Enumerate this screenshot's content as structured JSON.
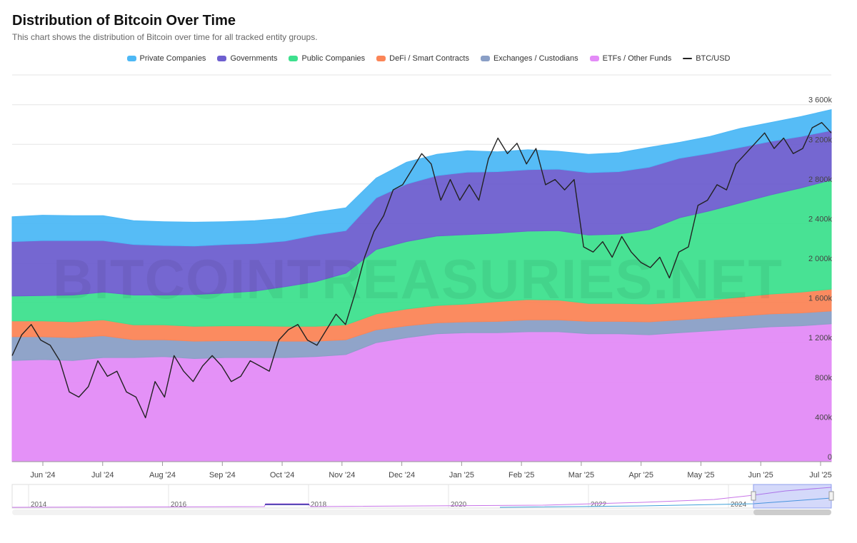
{
  "header": {
    "title": "Distribution of Bitcoin Over Time",
    "subtitle": "This chart shows the distribution of Bitcoin over time for all tracked entity groups."
  },
  "watermark": "BITCOINTREASURIES.NET",
  "legend": [
    {
      "label": "Private Companies",
      "color": "#4db8f5",
      "kind": "area"
    },
    {
      "label": "Governments",
      "color": "#6e5fcf",
      "kind": "area"
    },
    {
      "label": "Public Companies",
      "color": "#3ee08e",
      "kind": "area"
    },
    {
      "label": "DeFi / Smart Contracts",
      "color": "#fb8557",
      "kind": "area"
    },
    {
      "label": "Exchanges / Custodians",
      "color": "#8a9fc6",
      "kind": "area"
    },
    {
      "label": "ETFs / Other Funds",
      "color": "#e38bf7",
      "kind": "area"
    },
    {
      "label": "BTC/USD",
      "color": "#222222",
      "kind": "line"
    }
  ],
  "chart_data": {
    "type": "area",
    "stacked": true,
    "title": "Distribution of Bitcoin Over Time",
    "x_range": [
      "2024-05-15",
      "2025-07-01"
    ],
    "y_unit": "BTC",
    "ylim": [
      0,
      3600000
    ],
    "y_ticks": [
      0,
      400000,
      800000,
      1200000,
      1600000,
      2000000,
      2400000,
      2800000,
      3200000,
      3600000
    ],
    "y_tick_labels": [
      "0",
      "400k",
      "800k",
      "1 200k",
      "1 600k",
      "2 000k",
      "2 400k",
      "2 800k",
      "3 200k",
      "3 600k"
    ],
    "x_tick_labels": [
      "Jun '24",
      "Jul '24",
      "Aug '24",
      "Sep '24",
      "Oct '24",
      "Nov '24",
      "Dec '24",
      "Jan '25",
      "Feb '25",
      "Mar '25",
      "Apr '25",
      "May '25",
      "Jun '25",
      "Jul '25"
    ],
    "x": [
      0,
      0.5,
      1,
      1.5,
      2,
      2.5,
      3,
      3.5,
      4,
      4.5,
      5,
      5.5,
      6,
      6.5,
      7,
      7.5,
      8,
      8.5,
      9,
      9.5,
      10,
      10.5,
      11,
      11.5,
      12,
      12.5,
      13,
      13.5
    ],
    "series": [
      {
        "name": "ETFs / Other Funds",
        "color": "#e38bf7",
        "values": [
          1020000,
          1030000,
          1020000,
          1050000,
          1050000,
          1060000,
          1040000,
          1050000,
          1050000,
          1050000,
          1060000,
          1080000,
          1200000,
          1250000,
          1290000,
          1300000,
          1300000,
          1310000,
          1310000,
          1290000,
          1290000,
          1280000,
          1300000,
          1320000,
          1340000,
          1360000,
          1370000,
          1390000
        ]
      },
      {
        "name": "Exchanges / Custodians",
        "color": "#8a9fc6",
        "values": [
          240000,
          230000,
          230000,
          220000,
          180000,
          170000,
          175000,
          170000,
          170000,
          165000,
          155000,
          150000,
          130000,
          120000,
          110000,
          110000,
          115000,
          120000,
          120000,
          125000,
          125000,
          130000,
          130000,
          130000,
          130000,
          130000,
          130000,
          130000
        ]
      },
      {
        "name": "DeFi / Smart Contracts",
        "color": "#fb8557",
        "values": [
          160000,
          160000,
          160000,
          160000,
          150000,
          150000,
          150000,
          150000,
          150000,
          150000,
          150000,
          150000,
          160000,
          170000,
          175000,
          180000,
          200000,
          205000,
          200000,
          180000,
          180000,
          180000,
          180000,
          180000,
          190000,
          200000,
          210000,
          220000
        ]
      },
      {
        "name": "Public Companies",
        "color": "#3ee08e",
        "values": [
          250000,
          255000,
          270000,
          280000,
          300000,
          300000,
          320000,
          330000,
          350000,
          400000,
          450000,
          520000,
          650000,
          680000,
          700000,
          700000,
          690000,
          690000,
          700000,
          690000,
          700000,
          750000,
          850000,
          900000,
          950000,
          1000000,
          1050000,
          1100000
        ]
      },
      {
        "name": "Governments",
        "color": "#6e5fcf",
        "values": [
          550000,
          555000,
          550000,
          520000,
          510000,
          500000,
          490000,
          490000,
          480000,
          460000,
          470000,
          430000,
          520000,
          580000,
          610000,
          630000,
          620000,
          620000,
          620000,
          630000,
          630000,
          630000,
          600000,
          580000,
          560000,
          540000,
          520000,
          500000
        ]
      },
      {
        "name": "Private Companies",
        "color": "#4db8f5",
        "values": [
          250000,
          255000,
          250000,
          250000,
          240000,
          240000,
          240000,
          230000,
          230000,
          230000,
          230000,
          230000,
          200000,
          220000,
          215000,
          215000,
          200000,
          200000,
          180000,
          185000,
          190000,
          200000,
          160000,
          170000,
          190000,
          190000,
          200000,
          210000
        ]
      }
    ],
    "price_series": {
      "name": "BTC/USD",
      "color": "#222222",
      "values": [
        64000,
        68000,
        70000,
        67000,
        66000,
        63000,
        57000,
        56000,
        58000,
        63000,
        60000,
        61000,
        57000,
        56000,
        52000,
        59000,
        56000,
        64000,
        61000,
        59000,
        62000,
        64000,
        62000,
        59000,
        60000,
        63000,
        62000,
        61000,
        67000,
        69000,
        70000,
        67000,
        66000,
        69000,
        72000,
        70000,
        76000,
        83000,
        88000,
        91000,
        96000,
        97000,
        100000,
        103000,
        101000,
        94000,
        98000,
        94000,
        97000,
        94000,
        102000,
        106000,
        103000,
        105000,
        101000,
        104000,
        97000,
        98000,
        96000,
        98000,
        85000,
        84000,
        86000,
        83000,
        87000,
        84000,
        82000,
        81000,
        83000,
        79000,
        84000,
        85000,
        93000,
        94000,
        97000,
        96000,
        101000,
        103000,
        105000,
        107000,
        104000,
        106000,
        103000,
        104000,
        108000,
        109000,
        107000
      ]
    }
  },
  "navigator": {
    "year_labels": [
      "2014",
      "2016",
      "2018",
      "2020",
      "2022",
      "2024"
    ]
  }
}
